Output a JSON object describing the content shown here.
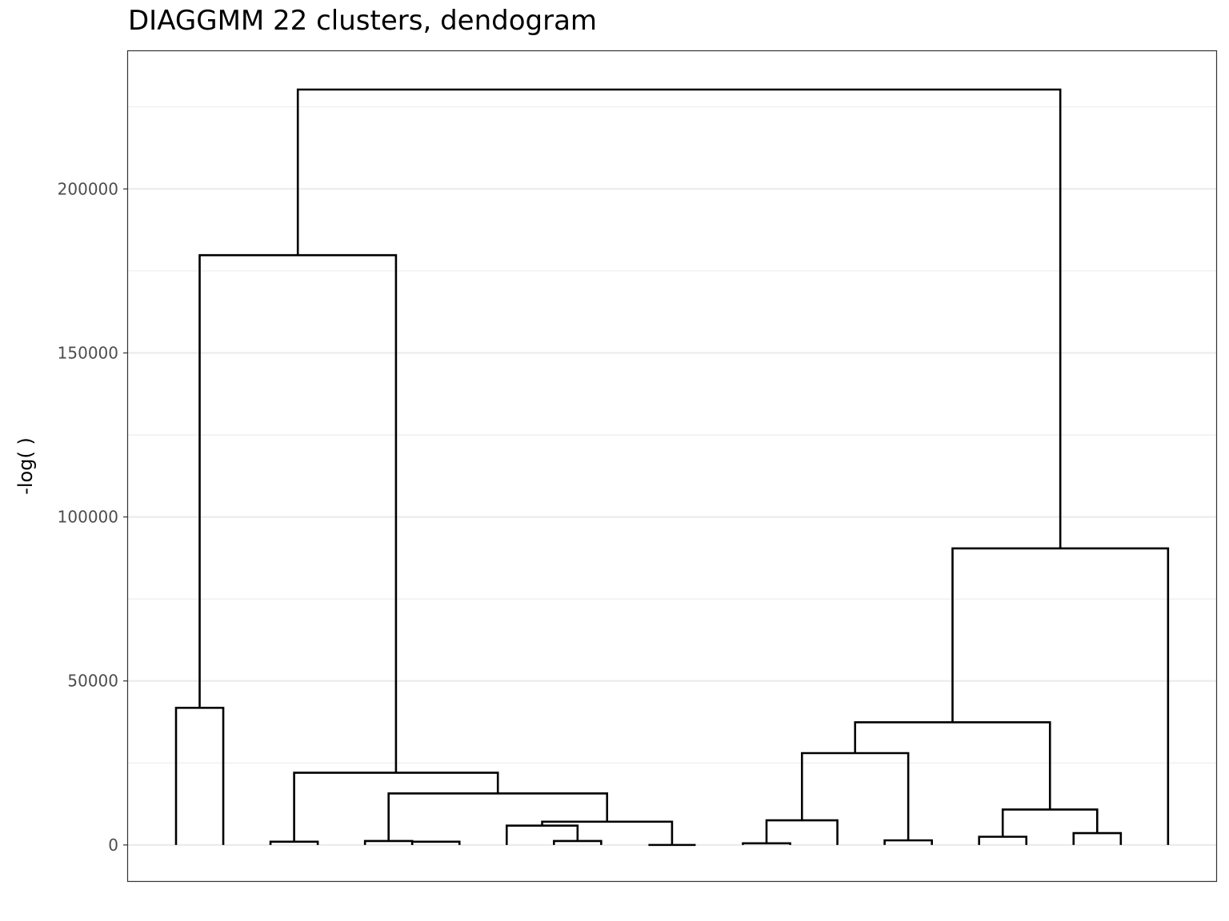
{
  "chart_data": {
    "type": "dendrogram",
    "title": "DIAGGMM 22 clusters, dendogram",
    "xlabel": "",
    "ylabel": "-log( )",
    "ylim": [
      -11000,
      242000
    ],
    "yticks": [
      0,
      50000,
      100000,
      150000,
      200000
    ],
    "ytick_labels": [
      "0",
      "50000",
      "100000",
      "150000",
      "200000"
    ],
    "grid": "horizontal major and minor",
    "leaves": 22,
    "merges": [
      {
        "left": 1,
        "right": 2,
        "height": 41800
      },
      {
        "left": 3,
        "right": 4,
        "height": 1000
      },
      {
        "left": 5,
        "right": 6,
        "height": 1200
      },
      {
        "left": 6,
        "right": 7,
        "height": 1000
      },
      {
        "left": 9,
        "right": 10,
        "height": 1200
      },
      {
        "left": 8,
        "right": 9.5,
        "height": 5900
      },
      {
        "left": 11,
        "right": 12,
        "height": 0
      },
      {
        "left": 8.75,
        "right": 11.5,
        "height": 7100
      },
      {
        "left": 5.5,
        "right": 10.125,
        "height": 15700
      },
      {
        "left": 3.5,
        "right": 7.8125,
        "height": 22000
      },
      {
        "left": 1.5,
        "right": 5.65625,
        "height": 179800
      },
      {
        "left": 13,
        "right": 14,
        "height": 500
      },
      {
        "left": 13.5,
        "right": 15,
        "height": 7500
      },
      {
        "left": 16,
        "right": 17,
        "height": 1400
      },
      {
        "left": 14.25,
        "right": 16.5,
        "height": 28000
      },
      {
        "left": 18,
        "right": 19,
        "height": 2500
      },
      {
        "left": 20,
        "right": 21,
        "height": 3600
      },
      {
        "left": 18.5,
        "right": 20.5,
        "height": 10800
      },
      {
        "left": 15.375,
        "right": 19.5,
        "height": 37400
      },
      {
        "left": 17.4375,
        "right": 22,
        "height": 90400
      },
      {
        "left": 3.578125,
        "right": 19.71875,
        "height": 230300
      }
    ]
  }
}
